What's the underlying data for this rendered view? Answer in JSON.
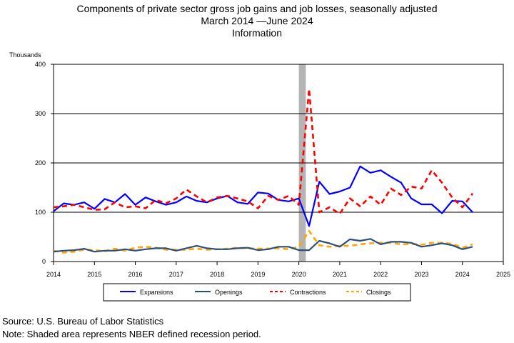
{
  "title": {
    "line1": "Components of private sector gross job gains and job losses, seasonally adjusted",
    "line2": "March 2014 —June 2024",
    "line3": "Information"
  },
  "footer": {
    "source": "Source: U.S. Bureau of Labor Statistics",
    "note": "Note: Shaded area represents NBER defined recession period."
  },
  "chart_data": {
    "type": "line",
    "title": "Components of private sector gross job gains and job losses, seasonally adjusted",
    "subtitle": "March 2014 —June 2024 Information",
    "ylabel": "Thousands",
    "xlabel": "",
    "ylim": [
      0,
      400
    ],
    "xlim": [
      2014,
      2025
    ],
    "y_ticks": [
      0,
      100,
      200,
      300,
      400
    ],
    "x_ticks": [
      "2014",
      "2015",
      "2016",
      "2017",
      "2018",
      "2019",
      "2020",
      "2021",
      "2022",
      "2023",
      "2024",
      "2025"
    ],
    "grid": "horizontal",
    "legend_position": "bottom",
    "recession_shading": {
      "start": 2020.0,
      "end": 2020.17
    },
    "x": [
      2014.0,
      2014.25,
      2014.5,
      2014.75,
      2015.0,
      2015.25,
      2015.5,
      2015.75,
      2016.0,
      2016.25,
      2016.5,
      2016.75,
      2017.0,
      2017.25,
      2017.5,
      2017.75,
      2018.0,
      2018.25,
      2018.5,
      2018.75,
      2019.0,
      2019.25,
      2019.5,
      2019.75,
      2020.0,
      2020.25,
      2020.5,
      2020.75,
      2021.0,
      2021.25,
      2021.5,
      2021.75,
      2022.0,
      2022.25,
      2022.5,
      2022.75,
      2023.0,
      2023.25,
      2023.5,
      2023.75,
      2024.0,
      2024.25
    ],
    "series": [
      {
        "name": "Expansions",
        "color": "#0000ff",
        "dash": "solid",
        "values": [
          102,
          118,
          115,
          120,
          107,
          127,
          120,
          137,
          115,
          130,
          122,
          115,
          120,
          132,
          123,
          120,
          128,
          133,
          120,
          117,
          140,
          138,
          125,
          122,
          128,
          72,
          162,
          137,
          142,
          150,
          193,
          180,
          185,
          172,
          160,
          128,
          116,
          116,
          98,
          123,
          122,
          100
        ]
      },
      {
        "name": "Openings",
        "color": "#2b4f78",
        "dash": "solid",
        "values": [
          20,
          22,
          23,
          26,
          20,
          22,
          22,
          25,
          22,
          25,
          27,
          27,
          22,
          27,
          32,
          27,
          25,
          25,
          27,
          28,
          23,
          25,
          30,
          30,
          23,
          23,
          42,
          37,
          30,
          45,
          42,
          46,
          35,
          40,
          40,
          38,
          30,
          33,
          37,
          33,
          25,
          30
        ]
      },
      {
        "name": "Contractions",
        "color": "#ff0000",
        "dash": "dashed",
        "values": [
          110,
          112,
          115,
          110,
          105,
          106,
          120,
          110,
          112,
          108,
          125,
          118,
          128,
          146,
          132,
          120,
          130,
          133,
          128,
          122,
          108,
          133,
          125,
          133,
          115,
          350,
          100,
          110,
          97,
          128,
          112,
          132,
          115,
          148,
          135,
          152,
          148,
          185,
          160,
          130,
          110,
          138
        ]
      },
      {
        "name": "Closings",
        "color": "#ffa500",
        "dash": "dashed",
        "values": [
          22,
          18,
          20,
          24,
          23,
          21,
          26,
          22,
          28,
          30,
          28,
          24,
          24,
          24,
          26,
          24,
          25,
          26,
          28,
          27,
          26,
          26,
          27,
          25,
          30,
          62,
          33,
          30,
          32,
          32,
          35,
          37,
          38,
          38,
          35,
          36,
          34,
          38,
          38,
          36,
          28,
          35
        ]
      }
    ]
  }
}
